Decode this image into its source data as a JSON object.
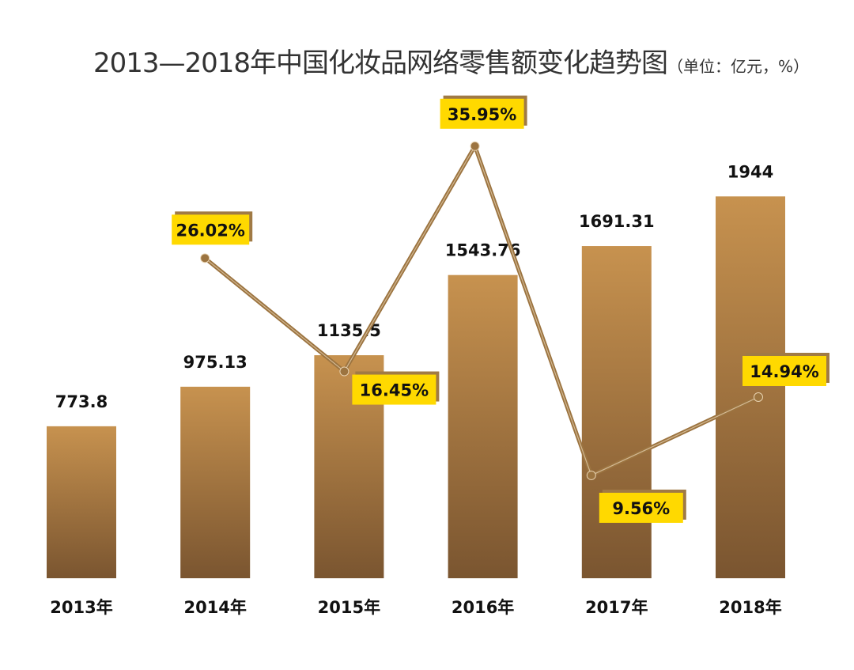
{
  "chart_data": {
    "type": "bar",
    "title": "2013—2018年中国化妆品网络零售额变化趋势图",
    "unit": "（单位：亿元，%）",
    "categories": [
      "2013年",
      "2014年",
      "2015年",
      "2016年",
      "2017年",
      "2018年"
    ],
    "series": [
      {
        "type": "bar",
        "values": [
          773.8,
          975.13,
          1135.5,
          1543.76,
          1691.31,
          1944
        ],
        "labels": [
          "773.8",
          "975.13",
          "1135.5",
          "1543.76",
          "1691.31",
          "1944"
        ]
      },
      {
        "type": "line",
        "values": [
          null,
          26.02,
          16.45,
          35.95,
          9.56,
          14.94
        ],
        "labels": [
          "",
          "26.02%",
          "16.45%",
          "35.95%",
          "9.56%",
          "14.94%"
        ]
      }
    ],
    "bar_ylim": [
      0,
      2000
    ],
    "line_ylim": [
      0,
      40
    ],
    "grid": false,
    "colors": {
      "bar_top": "#C7924F",
      "bar_bottom": "#7A5530",
      "line": "#9C7440",
      "label_bg": "#FFD900",
      "label_shadow": "#A07A45"
    }
  }
}
